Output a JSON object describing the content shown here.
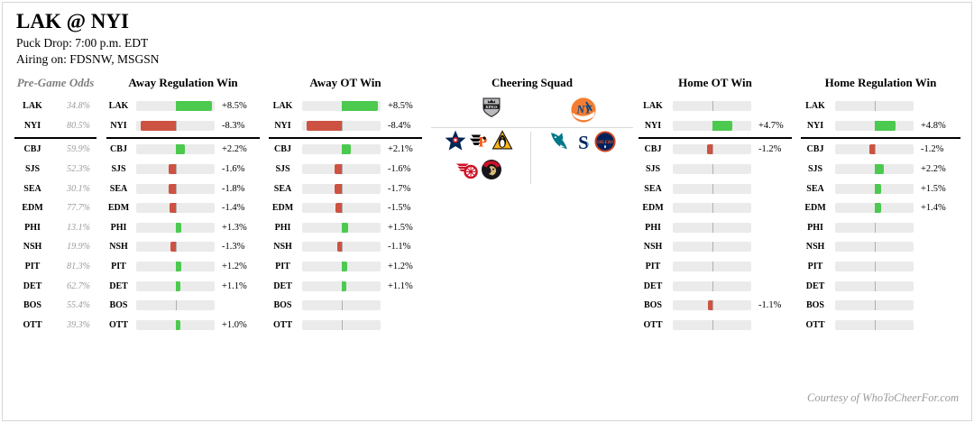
{
  "meta": {
    "title": "LAK @ NYI",
    "puck_drop": "Puck Drop: 7:00 p.m. EDT",
    "airing": "Airing on: FDSNW, MSGSN",
    "credit": "Courtesy of WhoToCheerFor.com"
  },
  "chart_data": [
    {
      "type": "bar",
      "subtype": "diverging-horizontal",
      "categories": [
        "LAK",
        "NYI",
        "CBJ",
        "SJS",
        "SEA",
        "EDM",
        "PHI",
        "NSH",
        "PIT",
        "DET",
        "BOS",
        "OTT"
      ],
      "series": [
        {
          "name": "Away Regulation Win",
          "values": [
            8.5,
            -8.3,
            2.2,
            -1.6,
            -1.8,
            -1.4,
            1.3,
            -1.3,
            1.2,
            1.1,
            null,
            1.0
          ]
        },
        {
          "name": "Away OT Win",
          "values": [
            8.5,
            -8.4,
            2.1,
            -1.6,
            -1.7,
            -1.5,
            1.5,
            -1.1,
            1.2,
            1.1,
            null,
            null
          ]
        },
        {
          "name": "Home OT Win",
          "values": [
            null,
            4.7,
            -1.2,
            null,
            null,
            null,
            null,
            null,
            null,
            null,
            -1.1,
            null
          ]
        },
        {
          "name": "Home Regulation Win",
          "values": [
            null,
            4.8,
            -1.2,
            2.2,
            1.5,
            1.4,
            null,
            null,
            null,
            null,
            null,
            null
          ]
        }
      ],
      "unit": "%",
      "xlim": [
        -9.3,
        9.3
      ],
      "positive_color": "#4cc94f",
      "negative_color": "#cd5241",
      "grid": false,
      "legend": "none"
    },
    {
      "type": "table",
      "title": "Pre-Game Odds",
      "categories": [
        "LAK",
        "NYI",
        "CBJ",
        "SJS",
        "SEA",
        "EDM",
        "PHI",
        "NSH",
        "PIT",
        "DET",
        "BOS",
        "OTT"
      ],
      "values": [
        "34.8%",
        "80.5%",
        "59.9%",
        "52.3%",
        "30.1%",
        "77.7%",
        "13.1%",
        "19.9%",
        "81.3%",
        "62.7%",
        "55.4%",
        "39.3%"
      ]
    }
  ],
  "cheering_squad": {
    "header": "Cheering Squad",
    "away_team": "LAK",
    "home_team": "NYI",
    "cheering_for_away": [
      "CBJ",
      "PHI",
      "PIT",
      "DET",
      "OTT"
    ],
    "cheering_for_home": [
      "SJS",
      "SEA",
      "EDM"
    ],
    "logo_icons": {
      "LAK": "la-kings-shield-logo",
      "NYI": "ny-islanders-logo",
      "CBJ": "blue-jackets-star-logo",
      "PHI": "flyers-winged-p-logo",
      "PIT": "penguins-logo",
      "DET": "red-wings-winged-wheel-logo",
      "OTT": "senators-roman-logo",
      "SJS": "sharks-logo",
      "SEA": "kraken-s-logo",
      "EDM": "oilers-logo"
    }
  },
  "colors": {
    "positive": "#4cc94f",
    "negative": "#cd5241",
    "bar_track": "#ebebeb",
    "center_line": "#b0b0b0",
    "black_divider": "#000000",
    "light_divider": "#d9d9d9",
    "muted_text": "#7f7f7f",
    "credit_text": "#9a9a9a"
  }
}
